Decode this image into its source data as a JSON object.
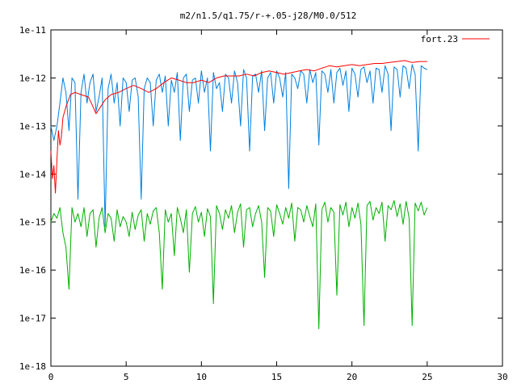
{
  "chart_data": {
    "type": "line",
    "title": "m2/n1.5/q1.75/r-+.05-j28/M0.0/512",
    "xlabel": "",
    "ylabel": "",
    "xlim": [
      0,
      30
    ],
    "ylim": [
      1e-18,
      1e-11
    ],
    "log_y": true,
    "grid": false,
    "legend_position": "top-right",
    "x_ticks": [
      "0",
      "5",
      "10",
      "15",
      "20",
      "25",
      "30"
    ],
    "y_ticks": [
      "1e-18",
      "1e-17",
      "1e-16",
      "1e-15",
      "1e-14",
      "1e-13",
      "1e-12",
      "1e-11"
    ],
    "series": [
      {
        "name": "fort.23",
        "color": "#ff0000",
        "x": [
          0.0,
          0.1,
          0.2,
          0.3,
          0.4,
          0.5,
          0.6,
          0.7,
          0.8,
          1.0,
          1.3,
          1.6,
          2.0,
          2.5,
          2.8,
          3.0,
          3.3,
          3.6,
          4.0,
          4.5,
          5.0,
          5.5,
          6.0,
          6.5,
          7.0,
          7.5,
          8.0,
          8.5,
          9.0,
          9.5,
          10.0,
          10.5,
          11.0,
          11.5,
          12.0,
          12.5,
          13.0,
          13.5,
          14.0,
          14.5,
          15.0,
          15.5,
          16.0,
          16.5,
          17.0,
          17.5,
          18.0,
          18.5,
          19.0,
          19.5,
          20.0,
          20.5,
          21.0,
          21.5,
          22.0,
          22.5,
          23.0,
          23.5,
          24.0,
          24.5,
          25.0
        ],
        "values": [
          3e-14,
          8e-15,
          1.5e-14,
          4e-15,
          2e-14,
          8e-14,
          4e-14,
          6e-14,
          1.5e-13,
          2.5e-13,
          4.5e-13,
          5e-13,
          4.5e-13,
          4e-13,
          2.5e-13,
          1.8e-13,
          2.5e-13,
          3.5e-13,
          4.5e-13,
          5e-13,
          6e-13,
          7e-13,
          6e-13,
          5e-13,
          6e-13,
          8e-13,
          1e-12,
          9e-13,
          8e-13,
          8e-13,
          9e-13,
          8e-13,
          1e-12,
          1.1e-12,
          1.1e-12,
          1.1e-12,
          1.2e-12,
          1.1e-12,
          1.3e-12,
          1.4e-12,
          1.3e-12,
          1.2e-12,
          1.3e-12,
          1.4e-12,
          1.5e-12,
          1.4e-12,
          1.6e-12,
          1.8e-12,
          1.7e-12,
          1.8e-12,
          1.9e-12,
          1.8e-12,
          1.9e-12,
          2e-12,
          2e-12,
          2.1e-12,
          2.2e-12,
          2.3e-12,
          2.1e-12,
          2.2e-12,
          2.2e-12
        ]
      },
      {
        "color": "#0080e0",
        "x": [
          0.0,
          0.2,
          0.4,
          0.6,
          0.8,
          1.0,
          1.2,
          1.4,
          1.6,
          1.8,
          2.0,
          2.2,
          2.4,
          2.6,
          2.8,
          3.0,
          3.2,
          3.4,
          3.6,
          3.8,
          4.0,
          4.2,
          4.4,
          4.6,
          4.8,
          5.0,
          5.2,
          5.4,
          5.6,
          5.8,
          6.0,
          6.2,
          6.4,
          6.6,
          6.8,
          7.0,
          7.2,
          7.4,
          7.6,
          7.8,
          8.0,
          8.2,
          8.4,
          8.6,
          8.8,
          9.0,
          9.2,
          9.4,
          9.6,
          9.8,
          10.0,
          10.2,
          10.4,
          10.6,
          10.8,
          11.0,
          11.2,
          11.4,
          11.6,
          11.8,
          12.0,
          12.2,
          12.4,
          12.6,
          12.8,
          13.0,
          13.2,
          13.4,
          13.6,
          13.8,
          14.0,
          14.2,
          14.4,
          14.6,
          14.8,
          15.0,
          15.2,
          15.4,
          15.6,
          15.8,
          16.0,
          16.2,
          16.4,
          16.6,
          16.8,
          17.0,
          17.2,
          17.4,
          17.6,
          17.8,
          18.0,
          18.2,
          18.4,
          18.6,
          18.8,
          19.0,
          19.2,
          19.4,
          19.6,
          19.8,
          20.0,
          20.2,
          20.4,
          20.6,
          20.8,
          21.0,
          21.2,
          21.4,
          21.6,
          21.8,
          22.0,
          22.2,
          22.4,
          22.6,
          22.8,
          23.0,
          23.2,
          23.4,
          23.6,
          23.8,
          24.0,
          24.2,
          24.4,
          24.6,
          24.8,
          25.0
        ],
        "values": [
          1e-13,
          5e-14,
          1e-13,
          3e-13,
          1e-12,
          5e-13,
          8e-14,
          1e-12,
          8e-13,
          3e-15,
          5e-13,
          1.2e-12,
          3e-13,
          8e-13,
          1.2e-12,
          2e-13,
          4e-13,
          1e-12,
          8e-16,
          6e-13,
          1.2e-12,
          3e-13,
          8e-13,
          1e-13,
          1e-12,
          8e-13,
          2e-13,
          9e-13,
          1e-12,
          4e-13,
          3e-15,
          6e-13,
          1e-12,
          8e-13,
          1e-13,
          9e-13,
          1.2e-12,
          5e-13,
          1.1e-12,
          1e-13,
          9e-13,
          5e-13,
          1.3e-12,
          5e-14,
          1e-12,
          1.2e-12,
          2e-13,
          9e-13,
          1e-12,
          3e-13,
          1.4e-12,
          5e-13,
          1e-12,
          3e-14,
          1.3e-12,
          6e-13,
          8e-13,
          2e-13,
          1.2e-12,
          1e-12,
          3e-13,
          1.4e-12,
          8e-13,
          1e-13,
          1.5e-12,
          1e-12,
          3e-14,
          1.1e-12,
          1.2e-12,
          5e-13,
          1.4e-12,
          8e-14,
          1e-12,
          1.3e-12,
          3e-13,
          1.4e-12,
          1e-12,
          4e-13,
          1.3e-12,
          5e-15,
          1.2e-12,
          1e-12,
          6e-13,
          1.4e-12,
          1.2e-12,
          3e-13,
          1.5e-12,
          8e-13,
          1.3e-12,
          4e-14,
          1.4e-12,
          1.2e-12,
          5e-13,
          1.5e-12,
          3e-13,
          1.3e-12,
          1.6e-12,
          7e-13,
          1.4e-12,
          2e-13,
          1.6e-12,
          1.2e-12,
          4e-13,
          1.5e-12,
          1.7e-12,
          8e-13,
          1.4e-12,
          3e-13,
          1.6e-12,
          1.5e-12,
          5e-13,
          1.8e-12,
          1.2e-12,
          8e-14,
          1.7e-12,
          1.5e-12,
          4e-13,
          1.8e-12,
          1.6e-12,
          6e-13,
          1.9e-12,
          1.2e-12,
          3e-14,
          1.8e-12,
          1.6e-12,
          1.5e-12
        ]
      },
      {
        "color": "#00b000",
        "x": [
          0.0,
          0.2,
          0.4,
          0.6,
          0.8,
          1.0,
          1.2,
          1.4,
          1.6,
          1.8,
          2.0,
          2.2,
          2.4,
          2.6,
          2.8,
          3.0,
          3.2,
          3.4,
          3.6,
          3.8,
          4.0,
          4.2,
          4.4,
          4.6,
          4.8,
          5.0,
          5.2,
          5.4,
          5.6,
          5.8,
          6.0,
          6.2,
          6.4,
          6.6,
          6.8,
          7.0,
          7.2,
          7.4,
          7.6,
          7.8,
          8.0,
          8.2,
          8.4,
          8.6,
          8.8,
          9.0,
          9.2,
          9.4,
          9.6,
          9.8,
          10.0,
          10.2,
          10.4,
          10.6,
          10.8,
          11.0,
          11.2,
          11.4,
          11.6,
          11.8,
          12.0,
          12.2,
          12.4,
          12.6,
          12.8,
          13.0,
          13.2,
          13.4,
          13.6,
          13.8,
          14.0,
          14.2,
          14.4,
          14.6,
          14.8,
          15.0,
          15.2,
          15.4,
          15.6,
          15.8,
          16.0,
          16.2,
          16.4,
          16.6,
          16.8,
          17.0,
          17.2,
          17.4,
          17.6,
          17.8,
          18.0,
          18.2,
          18.4,
          18.6,
          18.8,
          19.0,
          19.2,
          19.4,
          19.6,
          19.8,
          20.0,
          20.2,
          20.4,
          20.6,
          20.8,
          21.0,
          21.2,
          21.4,
          21.6,
          21.8,
          22.0,
          22.2,
          22.4,
          22.6,
          22.8,
          23.0,
          23.2,
          23.4,
          23.6,
          23.8,
          24.0,
          24.2,
          24.4,
          24.6,
          24.8,
          25.0
        ],
        "values": [
          1e-15,
          1.5e-15,
          1.2e-15,
          2e-15,
          6e-16,
          3e-16,
          4e-17,
          2e-15,
          1e-15,
          1.5e-15,
          8e-16,
          2e-15,
          5e-16,
          1.5e-15,
          1.8e-15,
          3e-16,
          1.2e-15,
          2e-15,
          6e-16,
          1.5e-15,
          1.2e-15,
          4e-16,
          1.8e-15,
          8e-16,
          1.3e-15,
          1e-15,
          5e-16,
          1.6e-15,
          7e-16,
          1.4e-15,
          1.8e-15,
          4e-16,
          1.5e-15,
          9e-16,
          1.7e-15,
          2e-15,
          6e-16,
          4e-17,
          1.8e-15,
          1e-15,
          1.5e-15,
          2e-16,
          2e-15,
          1.2e-15,
          6e-16,
          1.8e-15,
          9e-17,
          1.5e-15,
          2.1e-15,
          1e-15,
          1.6e-15,
          5e-16,
          1.9e-15,
          1.3e-15,
          2e-17,
          2.2e-15,
          1.5e-15,
          7e-16,
          1.8e-15,
          1.2e-15,
          2.2e-15,
          6e-16,
          1.6e-15,
          2.4e-15,
          3e-16,
          1.8e-15,
          2e-15,
          8e-16,
          1.5e-15,
          2.2e-15,
          1e-15,
          7e-17,
          2e-15,
          1.7e-15,
          5e-16,
          2.3e-15,
          1.5e-15,
          9e-16,
          2e-15,
          1.2e-15,
          2.5e-15,
          4e-16,
          2e-15,
          1.8e-15,
          1e-15,
          2.2e-15,
          1.3e-15,
          8e-16,
          2.4e-15,
          6e-18,
          1.8e-15,
          2.6e-15,
          1e-15,
          2e-15,
          1.6e-15,
          3e-17,
          2.3e-15,
          1.4e-15,
          2.6e-15,
          8e-16,
          2e-15,
          1.2e-15,
          2.5e-15,
          9e-16,
          7e-18,
          2.2e-15,
          2.7e-15,
          1.1e-15,
          2e-15,
          1.5e-15,
          2.6e-15,
          4e-16,
          2.2e-15,
          1.8e-15,
          2.8e-15,
          1.3e-15,
          2.4e-15,
          9e-16,
          2.7e-15,
          1.2e-15,
          7e-18,
          2.5e-15,
          1.7e-15,
          2.6e-15,
          1.4e-15,
          2e-15
        ]
      }
    ]
  }
}
